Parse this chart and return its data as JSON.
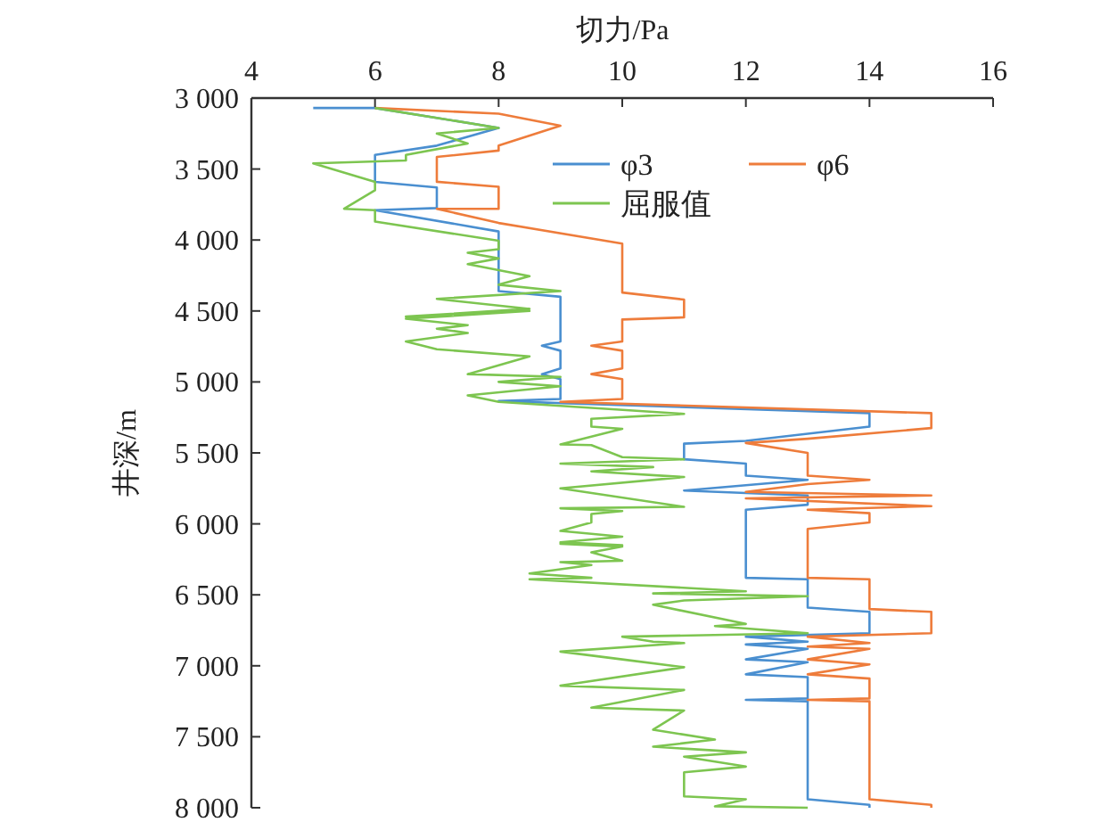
{
  "chart_data": {
    "type": "line",
    "xlabel": "切力/Pa",
    "ylabel": "井深/m",
    "xlim": [
      4,
      16
    ],
    "xticks": [
      4,
      6,
      8,
      10,
      12,
      14,
      16
    ],
    "ylim": [
      8000,
      3000
    ],
    "yticks": [
      {
        "value": 3000,
        "label": "3 000"
      },
      {
        "value": 3500,
        "label": "3 500"
      },
      {
        "value": 4000,
        "label": "4 000"
      },
      {
        "value": 4500,
        "label": "4 500"
      },
      {
        "value": 5000,
        "label": "5 000"
      },
      {
        "value": 5500,
        "label": "5 500"
      },
      {
        "value": 6000,
        "label": "6 000"
      },
      {
        "value": 6500,
        "label": "6 500"
      },
      {
        "value": 7000,
        "label": "7 000"
      },
      {
        "value": 7500,
        "label": "7 500"
      },
      {
        "value": 8000,
        "label": "8 000"
      }
    ],
    "grid": false,
    "legend": "top right",
    "marker": "none",
    "line_style": "solid",
    "series": [
      {
        "name": "φ3",
        "color": "#4a8fd0",
        "x": [
          5,
          6,
          8,
          7,
          6,
          6,
          7,
          7,
          6,
          8,
          8,
          9,
          9,
          8.7,
          9,
          9,
          8.7,
          9,
          9,
          8,
          14,
          14,
          12,
          11,
          11,
          12,
          12,
          13,
          11,
          13,
          13,
          12,
          12,
          13,
          13,
          14,
          14,
          12,
          13,
          12,
          13,
          12,
          13,
          12,
          13,
          13,
          12,
          13,
          13,
          14,
          14
        ],
        "values": [
          3070,
          3070,
          3210,
          3335,
          3400,
          3590,
          3630,
          3775,
          3790,
          3940,
          4360,
          4400,
          4715,
          4745,
          4780,
          4905,
          4945,
          4980,
          5120,
          5135,
          5220,
          5315,
          5415,
          5435,
          5545,
          5575,
          5660,
          5690,
          5765,
          5800,
          5865,
          5900,
          6380,
          6390,
          6590,
          6620,
          6770,
          6795,
          6830,
          6850,
          6880,
          6955,
          6975,
          7060,
          7080,
          7230,
          7240,
          7250,
          7940,
          7980,
          8000
        ]
      },
      {
        "name": "φ6",
        "color": "#ee7c3b",
        "x": [
          6,
          8,
          9,
          8,
          8,
          7,
          7,
          8,
          8,
          7,
          8,
          10,
          10,
          11,
          11,
          10,
          10,
          9.5,
          10,
          10,
          9.5,
          10,
          10,
          9,
          15,
          15,
          13,
          12,
          13,
          13,
          14,
          13,
          12,
          15,
          12,
          15,
          13,
          14,
          14,
          13,
          13,
          14,
          14,
          15,
          15,
          13,
          14,
          13,
          14,
          13,
          14,
          13,
          14,
          14,
          13,
          14,
          14,
          15,
          15
        ],
        "values": [
          3070,
          3110,
          3195,
          3335,
          3370,
          3415,
          3590,
          3625,
          3780,
          3780,
          3880,
          4025,
          4370,
          4420,
          4545,
          4560,
          4715,
          4745,
          4780,
          4905,
          4945,
          4980,
          5120,
          5140,
          5220,
          5325,
          5400,
          5430,
          5500,
          5660,
          5690,
          5720,
          5775,
          5800,
          5820,
          5875,
          5900,
          5925,
          5990,
          6035,
          6380,
          6390,
          6600,
          6620,
          6770,
          6795,
          6840,
          6865,
          6880,
          6955,
          6990,
          7060,
          7090,
          7230,
          7240,
          7250,
          7940,
          7980,
          8000
        ]
      },
      {
        "name": "屈服值",
        "color": "#7dc550",
        "x": [
          6,
          8,
          7,
          7.5,
          6.5,
          6.5,
          5,
          6,
          6,
          5.5,
          6,
          6,
          8,
          8,
          7.5,
          8,
          7.5,
          8.5,
          8,
          9,
          7,
          8.5,
          6.5,
          8.5,
          6.5,
          7.5,
          7,
          7.5,
          6.5,
          7,
          8.5,
          7.5,
          9,
          8,
          9,
          7.5,
          8,
          11,
          9.5,
          9.5,
          10,
          9,
          9.5,
          10,
          11,
          9,
          10.5,
          9.5,
          11,
          9,
          11,
          9,
          10,
          9.5,
          9.5,
          9,
          10,
          9,
          10,
          9,
          10,
          9.5,
          10,
          9,
          9.5,
          8.5,
          9.5,
          8.5,
          12,
          10.5,
          13,
          11,
          10.5,
          12,
          11.5,
          13,
          10,
          10.5,
          11,
          9,
          10,
          11,
          9,
          11,
          9.5,
          11,
          10.5,
          11.5,
          10.5,
          12,
          11,
          12,
          11,
          11,
          12,
          11.5,
          13
        ],
        "values": [
          3070,
          3210,
          3250,
          3320,
          3400,
          3440,
          3460,
          3590,
          3650,
          3780,
          3790,
          3870,
          4005,
          4065,
          4090,
          4130,
          4170,
          4255,
          4315,
          4360,
          4415,
          4485,
          4540,
          4500,
          4555,
          4600,
          4625,
          4655,
          4715,
          4770,
          4820,
          4945,
          4965,
          5000,
          5030,
          5095,
          5140,
          5225,
          5260,
          5315,
          5330,
          5440,
          5445,
          5530,
          5545,
          5575,
          5600,
          5630,
          5670,
          5750,
          5880,
          5890,
          5910,
          5930,
          5990,
          6050,
          6090,
          6130,
          6150,
          6140,
          6160,
          6200,
          6260,
          6270,
          6290,
          6350,
          6380,
          6390,
          6475,
          6490,
          6510,
          6540,
          6570,
          6705,
          6720,
          6770,
          6795,
          6830,
          6840,
          6900,
          6955,
          7010,
          7140,
          7170,
          7295,
          7315,
          7450,
          7520,
          7570,
          7610,
          7640,
          7710,
          7750,
          7920,
          7940,
          7990,
          8000
        ]
      }
    ]
  }
}
